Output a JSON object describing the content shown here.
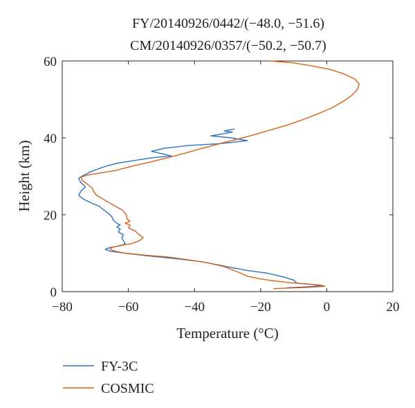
{
  "chart_data": {
    "type": "line",
    "title_lines": [
      "FY/20140926/0442/(−48.0, −51.6)",
      "CM/20140926/0357/(−50.2, −50.7)"
    ],
    "xlabel": "Temperature (°C)",
    "ylabel": "Height (km)",
    "xlim": [
      -80,
      20
    ],
    "ylim": [
      0,
      60
    ],
    "xticks": [
      -80,
      -60,
      -40,
      -20,
      0,
      20
    ],
    "yticks": [
      0,
      20,
      40,
      60
    ],
    "xtick_labels": [
      "−80",
      "−60",
      "−40",
      "−20",
      "0",
      "20"
    ],
    "ytick_labels": [
      "0",
      "20",
      "40",
      "60"
    ],
    "grid": false,
    "legend_position": "bottom-left, outside plot",
    "series": [
      {
        "name": "FY-3C",
        "color": "#2e6fc0",
        "points": [
          [
            -28,
            42.3
          ],
          [
            -31,
            41.8
          ],
          [
            -28.5,
            41.5
          ],
          [
            -35,
            40.5
          ],
          [
            -29,
            40.0
          ],
          [
            -24,
            39.3
          ],
          [
            -32,
            38.5
          ],
          [
            -42,
            38.0
          ],
          [
            -49,
            37.3
          ],
          [
            -53,
            36.5
          ],
          [
            -47,
            35.3
          ],
          [
            -53,
            34.8
          ],
          [
            -59,
            34.0
          ],
          [
            -64,
            33.3
          ],
          [
            -68,
            32.3
          ],
          [
            -71,
            31.3
          ],
          [
            -73.5,
            30.3
          ],
          [
            -75,
            29.5
          ],
          [
            -74.5,
            28.5
          ],
          [
            -73,
            27.3
          ],
          [
            -74.5,
            26.0
          ],
          [
            -75,
            25.0
          ],
          [
            -73.5,
            24.0
          ],
          [
            -71,
            23.0
          ],
          [
            -69,
            22.3
          ],
          [
            -67.5,
            21.3
          ],
          [
            -66,
            20.3
          ],
          [
            -65,
            19.5
          ],
          [
            -64.5,
            18.5
          ],
          [
            -63.5,
            17.8
          ],
          [
            -62.5,
            17.3
          ],
          [
            -63.5,
            16.8
          ],
          [
            -62.5,
            16.3
          ],
          [
            -63,
            15.5
          ],
          [
            -61.5,
            14.8
          ],
          [
            -62,
            14.0
          ],
          [
            -61.5,
            13.3
          ],
          [
            -61,
            12.5
          ],
          [
            -62,
            12.0
          ],
          [
            -65.5,
            11.5
          ],
          [
            -67,
            11.0
          ],
          [
            -65.5,
            10.5
          ],
          [
            -61,
            10.0
          ],
          [
            -54,
            9.3
          ],
          [
            -45,
            8.5
          ],
          [
            -38,
            7.8
          ],
          [
            -33,
            7.0
          ],
          [
            -29,
            6.3
          ],
          [
            -24,
            5.5
          ],
          [
            -18,
            4.8
          ],
          [
            -13,
            3.8
          ],
          [
            -10,
            3.0
          ],
          [
            -9,
            2.2
          ],
          [
            -4,
            1.8
          ],
          [
            -1.5,
            1.5
          ],
          [
            -5,
            1.3
          ],
          [
            -12,
            1.0
          ]
        ]
      },
      {
        "name": "COSMIC",
        "color": "#d95f16",
        "points": [
          [
            -17,
            60
          ],
          [
            -10,
            59.5
          ],
          [
            -5,
            58.8
          ],
          [
            1,
            57.8
          ],
          [
            5,
            56.7
          ],
          [
            8.5,
            55.3
          ],
          [
            9.8,
            54.0
          ],
          [
            9.2,
            52.5
          ],
          [
            7.5,
            51.0
          ],
          [
            5,
            49.5
          ],
          [
            2,
            48.0
          ],
          [
            -2.5,
            46.3
          ],
          [
            -7,
            44.8
          ],
          [
            -12,
            43.3
          ],
          [
            -18,
            41.8
          ],
          [
            -24,
            40.3
          ],
          [
            -31,
            38.8
          ],
          [
            -38,
            37.2
          ],
          [
            -45,
            35.5
          ],
          [
            -52,
            34.0
          ],
          [
            -58,
            32.8
          ],
          [
            -64,
            31.5
          ],
          [
            -69,
            30.8
          ],
          [
            -72.5,
            30.3
          ],
          [
            -74.3,
            29.8
          ],
          [
            -74,
            29.0
          ],
          [
            -72.5,
            28.0
          ],
          [
            -71,
            27.0
          ],
          [
            -70.5,
            26.0
          ],
          [
            -69.5,
            25.0
          ],
          [
            -67.5,
            24.0
          ],
          [
            -65.5,
            23.0
          ],
          [
            -63.5,
            22.0
          ],
          [
            -62,
            21.3
          ],
          [
            -61,
            20.5
          ],
          [
            -60.5,
            19.8
          ],
          [
            -60.5,
            19.0
          ],
          [
            -59.5,
            18.3
          ],
          [
            -61,
            17.8
          ],
          [
            -59.5,
            17.3
          ],
          [
            -60,
            16.6
          ],
          [
            -58,
            15.8
          ],
          [
            -57,
            15.0
          ],
          [
            -55.5,
            14.0
          ],
          [
            -56.5,
            13.3
          ],
          [
            -59,
            12.5
          ],
          [
            -62.5,
            12.0
          ],
          [
            -65,
            11.5
          ],
          [
            -65.5,
            11.0
          ],
          [
            -64,
            10.5
          ],
          [
            -61,
            10.0
          ],
          [
            -55,
            9.5
          ],
          [
            -48,
            9.0
          ],
          [
            -42,
            8.3
          ],
          [
            -36,
            7.5
          ],
          [
            -31,
            6.5
          ],
          [
            -28,
            5.5
          ],
          [
            -26,
            4.8
          ],
          [
            -24,
            4.0
          ],
          [
            -20,
            3.3
          ],
          [
            -16,
            2.8
          ],
          [
            -11,
            2.3
          ],
          [
            -6,
            2.0
          ],
          [
            -2,
            1.7
          ],
          [
            -0.5,
            1.4
          ],
          [
            -6,
            1.1
          ],
          [
            -16,
            0.8
          ]
        ]
      }
    ]
  }
}
